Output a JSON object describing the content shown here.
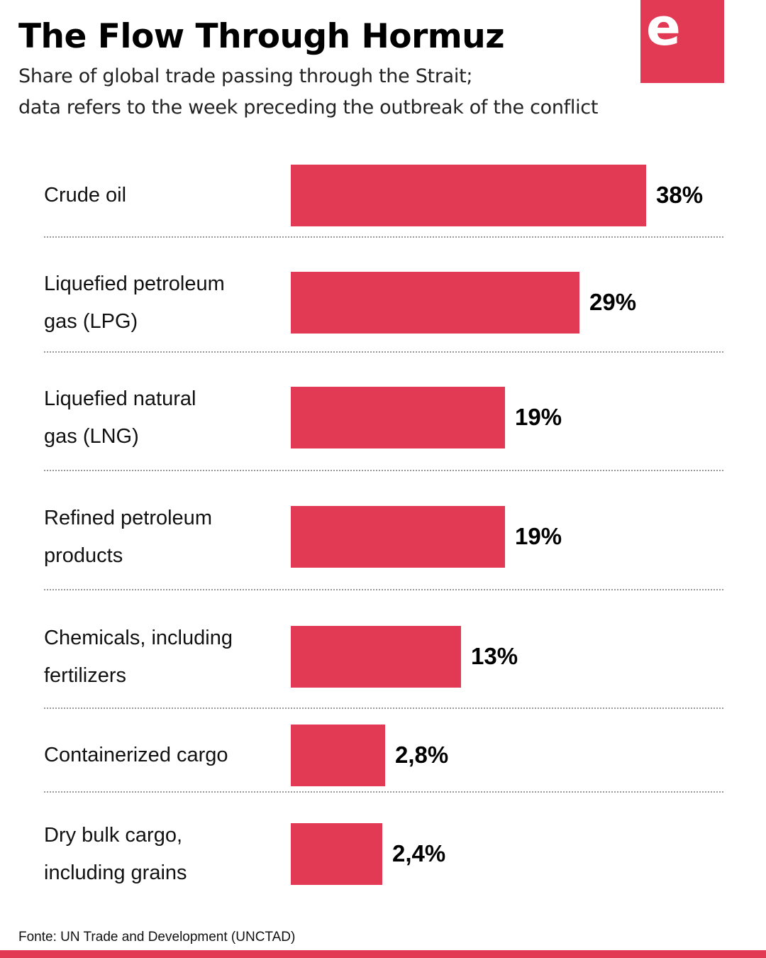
{
  "header": {
    "title": "The Flow Through Hormuz",
    "subtitle_line1": "Share of global trade passing through the Strait;",
    "subtitle_line2": "data refers to the week preceding the outbreak of the conflict",
    "logo_letter": "e"
  },
  "colors": {
    "accent": "#e23a55",
    "text": "#111111",
    "divider": "#999999"
  },
  "footer": {
    "source": "Fonte: UN Trade and Development (UNCTAD)"
  },
  "chart_data": {
    "type": "bar",
    "orientation": "horizontal",
    "title": "The Flow Through Hormuz",
    "subtitle": "Share of global trade passing through the Strait; data refers to the week preceding the outbreak of the conflict",
    "xlabel": "",
    "ylabel": "",
    "unit": "%",
    "grid": false,
    "categories": [
      "Crude oil",
      "Liquefied petroleum gas (LPG)",
      "Liquefied natural gas (LNG)",
      "Refined petroleum products",
      "Chemicals, including fertilizers",
      "Containerized cargo",
      "Dry bulk cargo, including grains"
    ],
    "label_lines": [
      [
        "Crude oil"
      ],
      [
        "Liquefied petroleum",
        "gas (LPG)"
      ],
      [
        "Liquefied natural",
        "gas (LNG)"
      ],
      [
        "Refined petroleum",
        "products"
      ],
      [
        "Chemicals, including",
        "fertilizers"
      ],
      [
        "Containerized cargo"
      ],
      [
        "Dry bulk cargo,",
        "including grains"
      ]
    ],
    "values": [
      38,
      29,
      19,
      19,
      13,
      2.8,
      2.4
    ],
    "value_labels": [
      "38%",
      "29%",
      "19%",
      "19%",
      "13%",
      "2,8%",
      "2,4%"
    ],
    "source": "UN Trade and Development (UNCTAD)"
  }
}
